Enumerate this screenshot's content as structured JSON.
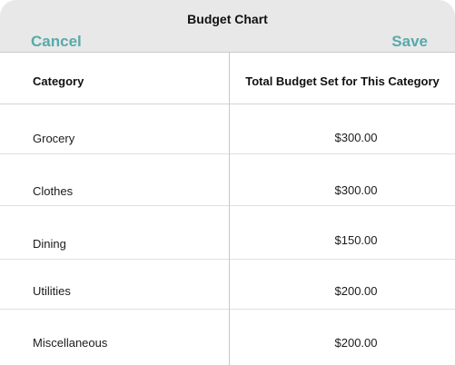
{
  "header": {
    "title": "Budget Chart",
    "cancel_label": "Cancel",
    "save_label": "Save"
  },
  "table": {
    "columns": [
      "Category",
      "Total Budget Set for This Category"
    ],
    "rows": [
      {
        "category": "Grocery",
        "amount": "$300.00"
      },
      {
        "category": "Clothes",
        "amount": "$300.00"
      },
      {
        "category": "Dining",
        "amount": "$150.00"
      },
      {
        "category": "Utilities",
        "amount": "$200.00"
      },
      {
        "category": "Miscellaneous",
        "amount": "$200.00"
      }
    ]
  },
  "colors": {
    "accent": "#5aa9a9",
    "header_bg": "#e8e8e8"
  }
}
